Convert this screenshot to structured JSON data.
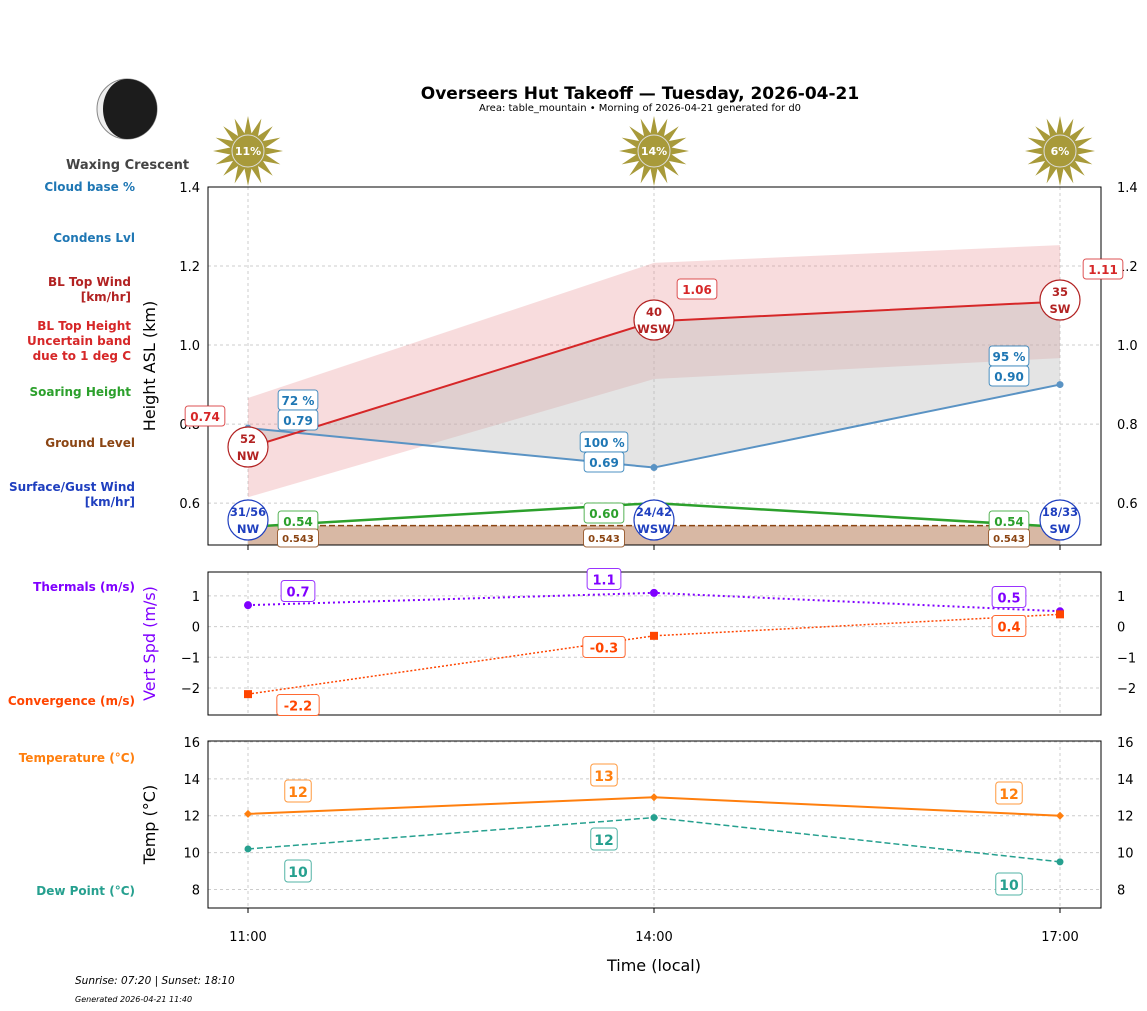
{
  "title": "Overseers Hut Takeoff — Tuesday, 2026-04-21",
  "subtitle": "Area: table_mountain • Morning of 2026-04-21 generated for d0",
  "moon": {
    "phase": "Waxing Crescent",
    "icon": "waxing-crescent-moon-icon"
  },
  "footer": {
    "sun": "Sunrise: 07:20 | Sunset: 18:10",
    "generated": "Generated 2026-04-21 11:40"
  },
  "left_labels": {
    "cloud_base": "Cloud base %",
    "condens": "Condens Lvl",
    "bl_wind": "BL Top Wind\n[km/hr]",
    "bl_height": "BL Top Height\nUncertain band\ndue to 1 deg C",
    "soaring": "Soaring Height",
    "ground": "Ground Level",
    "surface_wind": "Surface/Gust Wind\n[km/hr]",
    "thermals": "Thermals (m/s)",
    "convergence": "Convergence (m/s)",
    "temperature": "Temperature (°C)",
    "dew": "Dew Point (°C)"
  },
  "colors": {
    "cloud": "#1f77b4",
    "bl": "#d62728",
    "bl_wind": "#b22222",
    "soaring": "#2ca02c",
    "ground": "#8b4513",
    "surface": "#1f3fbf",
    "thermal": "#8000ff",
    "conv": "#ff4500",
    "temp": "#ff7f0e",
    "dew": "#26a08f",
    "sun": "#a89a3a"
  },
  "chart_data": [
    {
      "type": "line",
      "ylabel": "Height ASL (km)",
      "ylim": [
        0.494,
        1.4
      ],
      "yticks": [
        "0.6",
        "0.8",
        "1.0",
        "1.2",
        "1.4"
      ],
      "grid": true,
      "x": [
        "11:00",
        "14:00",
        "17:00"
      ],
      "sun_pct": [
        "11%",
        "14%",
        "6%"
      ],
      "bl_top": {
        "values": [
          0.74,
          1.06,
          1.11
        ],
        "labels": [
          "0.74",
          "1.06",
          "1.11"
        ],
        "band_low": [
          0.615,
          0.914,
          0.967
        ],
        "band_high": [
          0.866,
          1.208,
          1.253
        ]
      },
      "bl_wind": {
        "speed": [
          "52",
          "40",
          "35"
        ],
        "dir": [
          "NW",
          "WSW",
          "SW"
        ]
      },
      "condens": {
        "values": [
          0.79,
          0.69,
          0.9
        ],
        "labels": [
          "0.79",
          "0.69",
          "0.90"
        ],
        "cloud_pct": [
          "72 %",
          "100 %",
          "95 %"
        ]
      },
      "soaring": {
        "values": [
          0.54,
          0.6,
          0.54
        ],
        "labels": [
          "0.54",
          "0.60",
          "0.54"
        ]
      },
      "ground": {
        "value": 0.543,
        "label": "0.543"
      },
      "surface_wind": {
        "speed": [
          "31/56",
          "24/42",
          "18/33"
        ],
        "dir": [
          "NW",
          "WSW",
          "SW"
        ]
      }
    },
    {
      "type": "line",
      "ylabel": "Vert Spd (m/s)",
      "ylim": [
        -2.88,
        1.78
      ],
      "yticks": [
        "−2",
        "−1",
        "0",
        "1"
      ],
      "grid": true,
      "thermals": {
        "values": [
          0.7,
          1.1,
          0.5
        ],
        "labels": [
          "0.7",
          "1.1",
          "0.5"
        ]
      },
      "convergence": {
        "values": [
          -2.2,
          -0.3,
          0.4
        ],
        "labels": [
          "-2.2",
          "-0.3",
          "0.4"
        ]
      }
    },
    {
      "type": "line",
      "ylabel": "Temp (°C)",
      "xlabel": "Time (local)",
      "ylim": [
        7,
        16.05
      ],
      "yticks": [
        "8",
        "10",
        "12",
        "14",
        "16"
      ],
      "grid": true,
      "temperature": {
        "values": [
          12.1,
          13.0,
          12.0
        ],
        "labels": [
          "12",
          "13",
          "12"
        ]
      },
      "dew_point": {
        "values": [
          10.2,
          11.9,
          9.5
        ],
        "labels": [
          "10",
          "12",
          "10"
        ]
      }
    }
  ]
}
